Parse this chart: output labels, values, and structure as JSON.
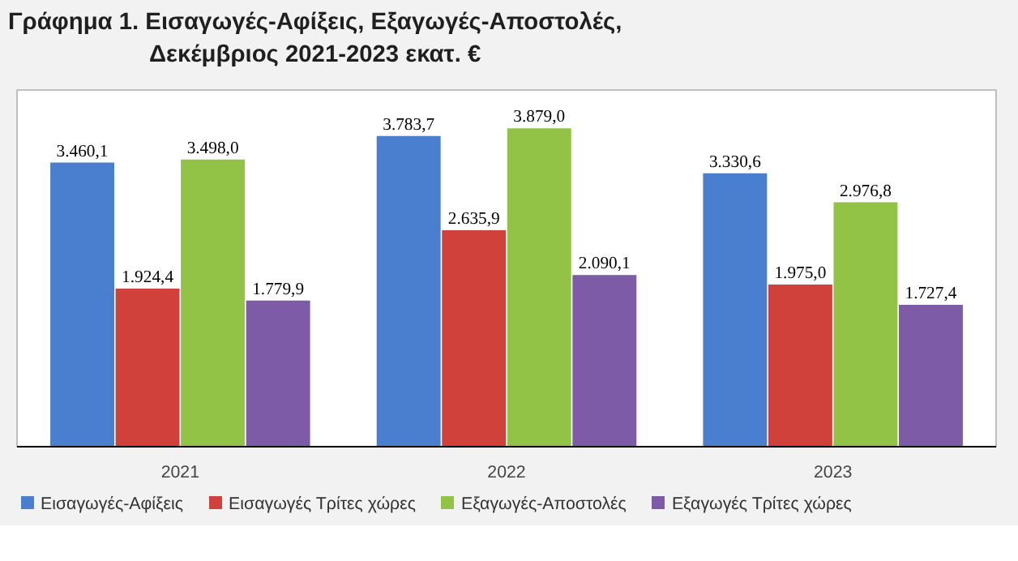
{
  "chart_data": {
    "type": "bar",
    "title": "Γράφημα 1. Εισαγωγές-Αφίξεις, Εξαγωγές-Αποστολές,\nΔεκέμβριος 2021-2023 εκατ. €",
    "categories": [
      "2021",
      "2022",
      "2023"
    ],
    "series": [
      {
        "name": "Εισαγωγές-Αφίξεις",
        "color": "#4a7fcf",
        "values": [
          3460.1,
          3783.7,
          3330.6
        ],
        "value_labels": [
          "3.460,1",
          "3.783,7",
          "3.330,6"
        ]
      },
      {
        "name": "Εισαγωγές Τρίτες χώρες",
        "color": "#d0413c",
        "values": [
          1924.4,
          2635.9,
          1975.0
        ],
        "value_labels": [
          "1.924,4",
          "2.635,9",
          "1.975,0"
        ]
      },
      {
        "name": "Εξαγωγές-Αποστολές",
        "color": "#92c347",
        "values": [
          3498.0,
          3879.0,
          2976.8
        ],
        "value_labels": [
          "3.498,0",
          "3.879,0",
          "2.976,8"
        ]
      },
      {
        "name": "Εξαγωγές Τρίτες χώρες",
        "color": "#7d5ba6",
        "values": [
          1779.9,
          2090.1,
          1727.4
        ],
        "value_labels": [
          "1.779,9",
          "2.090,1",
          "1.727,4"
        ]
      }
    ],
    "legend": "bottom",
    "grid": false
  }
}
